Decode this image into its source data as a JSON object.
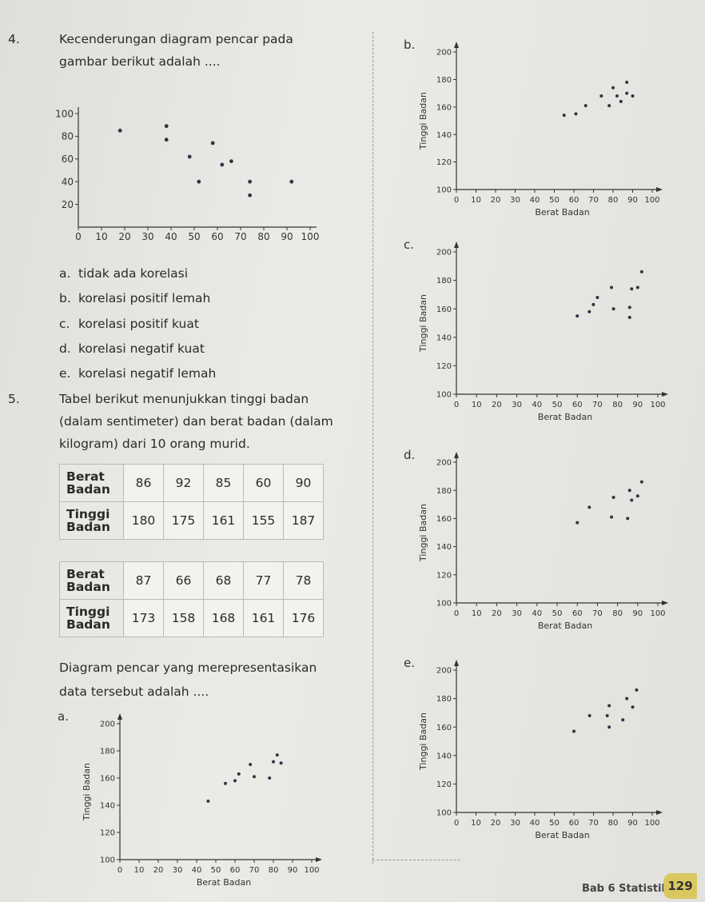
{
  "q4": {
    "number": "4.",
    "line1": "Kecenderungan diagram pencar pada",
    "line2": "gambar berikut adalah ....",
    "options": [
      {
        "letter": "a.",
        "text": "tidak ada korelasi"
      },
      {
        "letter": "b.",
        "text": "korelasi positif lemah"
      },
      {
        "letter": "c.",
        "text": "korelasi positif kuat"
      },
      {
        "letter": "d.",
        "text": "korelasi negatif kuat"
      },
      {
        "letter": "e.",
        "text": "korelasi negatif lemah"
      }
    ]
  },
  "q5": {
    "number": "5.",
    "line1": "Tabel berikut menunjukkan tinggi badan",
    "line2": "(dalam sentimeter) dan berat badan (dalam",
    "line3": "kilogram) dari 10 orang murid.",
    "table1": {
      "row1_label_1": "Berat",
      "row1_label_2": "Badan",
      "row1": [
        "86",
        "92",
        "85",
        "60",
        "90"
      ],
      "row2_label_1": "Tinggi",
      "row2_label_2": "Badan",
      "row2": [
        "180",
        "175",
        "161",
        "155",
        "187"
      ]
    },
    "table2": {
      "row1_label_1": "Berat",
      "row1_label_2": "Badan",
      "row1": [
        "87",
        "66",
        "68",
        "77",
        "78"
      ],
      "row2_label_1": "Tinggi",
      "row2_label_2": "Badan",
      "row2": [
        "173",
        "158",
        "168",
        "161",
        "176"
      ]
    },
    "question_line1": "Diagram pencar yang merepresentasikan",
    "question_line2": "data tersebut adalah ...."
  },
  "footer": {
    "chapter": "Bab 6 Statistika",
    "page": "129"
  },
  "chart_data": [
    {
      "id": "q4-main",
      "type": "scatter",
      "xlim": [
        0,
        100
      ],
      "ylim": [
        0,
        100
      ],
      "xticks": [
        "0",
        "10",
        "20",
        "30",
        "40",
        "50",
        "60",
        "70",
        "80",
        "90",
        "100"
      ],
      "yticks": [
        "20",
        "40",
        "60",
        "80",
        "100"
      ],
      "xtick_values": [
        0,
        10,
        20,
        30,
        40,
        50,
        60,
        70,
        80,
        90,
        100
      ],
      "ytick_values": [
        20,
        40,
        60,
        80,
        100
      ],
      "xlabel": "",
      "ylabel": "",
      "points": [
        [
          18,
          85
        ],
        [
          38,
          89
        ],
        [
          38,
          77
        ],
        [
          48,
          62
        ],
        [
          52,
          40
        ],
        [
          58,
          74
        ],
        [
          62,
          55
        ],
        [
          66,
          58
        ],
        [
          74,
          40
        ],
        [
          74,
          28
        ],
        [
          92,
          40
        ]
      ]
    },
    {
      "id": "option-a",
      "type": "scatter",
      "option_letter": "a.",
      "xlim": [
        0,
        100
      ],
      "ylim": [
        100,
        200
      ],
      "xticks": [
        "0",
        "10",
        "20",
        "30",
        "40",
        "50",
        "60",
        "70",
        "80",
        "90",
        "100"
      ],
      "yticks": [
        "100",
        "120",
        "140",
        "160",
        "180",
        "200"
      ],
      "xtick_values": [
        0,
        10,
        20,
        30,
        40,
        50,
        60,
        70,
        80,
        90,
        100
      ],
      "ytick_values": [
        100,
        120,
        140,
        160,
        180,
        200
      ],
      "xlabel": "Berat Badan",
      "ylabel": "Tinggi Badan",
      "points": [
        [
          46,
          143
        ],
        [
          55,
          156
        ],
        [
          60,
          158
        ],
        [
          62,
          163
        ],
        [
          68,
          170
        ],
        [
          70,
          161
        ],
        [
          78,
          160
        ],
        [
          80,
          172
        ],
        [
          82,
          177
        ],
        [
          84,
          171
        ]
      ]
    },
    {
      "id": "option-b",
      "type": "scatter",
      "option_letter": "b.",
      "xlim": [
        0,
        100
      ],
      "ylim": [
        100,
        200
      ],
      "xticks": [
        "0",
        "10",
        "20",
        "30",
        "40",
        "50",
        "60",
        "70",
        "80",
        "90",
        "100"
      ],
      "yticks": [
        "100",
        "120",
        "140",
        "160",
        "180",
        "200"
      ],
      "xtick_values": [
        0,
        10,
        20,
        30,
        40,
        50,
        60,
        70,
        80,
        90,
        100
      ],
      "ytick_values": [
        100,
        120,
        140,
        160,
        180,
        200
      ],
      "xlabel": "Berat Badan",
      "ylabel": "Tinggi Badan",
      "points": [
        [
          55,
          154
        ],
        [
          61,
          155
        ],
        [
          66,
          161
        ],
        [
          74,
          168
        ],
        [
          78,
          161
        ],
        [
          80,
          174
        ],
        [
          82,
          168
        ],
        [
          84,
          164
        ],
        [
          87,
          170
        ],
        [
          90,
          168
        ],
        [
          87,
          178
        ]
      ]
    },
    {
      "id": "option-c",
      "type": "scatter",
      "option_letter": "c.",
      "xlim": [
        0,
        100
      ],
      "ylim": [
        100,
        200
      ],
      "xticks": [
        "0",
        "10",
        "20",
        "30",
        "40",
        "50",
        "60",
        "70",
        "80",
        "90",
        "100"
      ],
      "yticks": [
        "100",
        "120",
        "140",
        "160",
        "180",
        "200"
      ],
      "xtick_values": [
        0,
        10,
        20,
        30,
        40,
        50,
        60,
        70,
        80,
        90,
        100
      ],
      "ytick_values": [
        100,
        120,
        140,
        160,
        180,
        200
      ],
      "xlabel": "Berat Badan",
      "ylabel": "Tinggi Badan",
      "points": [
        [
          60,
          155
        ],
        [
          66,
          158
        ],
        [
          68,
          163
        ],
        [
          70,
          168
        ],
        [
          77,
          175
        ],
        [
          78,
          160
        ],
        [
          86,
          161
        ],
        [
          86,
          154
        ],
        [
          87,
          174
        ],
        [
          90,
          175
        ],
        [
          92,
          186
        ]
      ]
    },
    {
      "id": "option-d",
      "type": "scatter",
      "option_letter": "d.",
      "xlim": [
        0,
        100
      ],
      "ylim": [
        100,
        200
      ],
      "xticks": [
        "0",
        "10",
        "20",
        "30",
        "40",
        "50",
        "60",
        "70",
        "80",
        "90",
        "100"
      ],
      "yticks": [
        "100",
        "120",
        "140",
        "160",
        "180",
        "200"
      ],
      "xtick_values": [
        0,
        10,
        20,
        30,
        40,
        50,
        60,
        70,
        80,
        90,
        100
      ],
      "ytick_values": [
        100,
        120,
        140,
        160,
        180,
        200
      ],
      "xlabel": "Berat Badan",
      "ylabel": "Tinggi Badan",
      "points": [
        [
          60,
          157
        ],
        [
          66,
          168
        ],
        [
          77,
          161
        ],
        [
          78,
          175
        ],
        [
          86,
          180
        ],
        [
          87,
          173
        ],
        [
          90,
          176
        ],
        [
          92,
          186
        ],
        [
          85,
          160
        ]
      ]
    },
    {
      "id": "option-e",
      "type": "scatter",
      "option_letter": "e.",
      "xlim": [
        0,
        100
      ],
      "ylim": [
        100,
        200
      ],
      "xticks": [
        "0",
        "10",
        "20",
        "30",
        "40",
        "50",
        "60",
        "70",
        "80",
        "90",
        "100"
      ],
      "yticks": [
        "100",
        "120",
        "140",
        "160",
        "180",
        "200"
      ],
      "xtick_values": [
        0,
        10,
        20,
        30,
        40,
        50,
        60,
        70,
        80,
        90,
        100
      ],
      "ytick_values": [
        100,
        120,
        140,
        160,
        180,
        200
      ],
      "xlabel": "Berat Badan",
      "ylabel": "Tinggi Badan",
      "points": [
        [
          60,
          157
        ],
        [
          68,
          168
        ],
        [
          77,
          168
        ],
        [
          78,
          175
        ],
        [
          78,
          160
        ],
        [
          85,
          165
        ],
        [
          87,
          180
        ],
        [
          92,
          186
        ],
        [
          90,
          174
        ]
      ]
    }
  ]
}
